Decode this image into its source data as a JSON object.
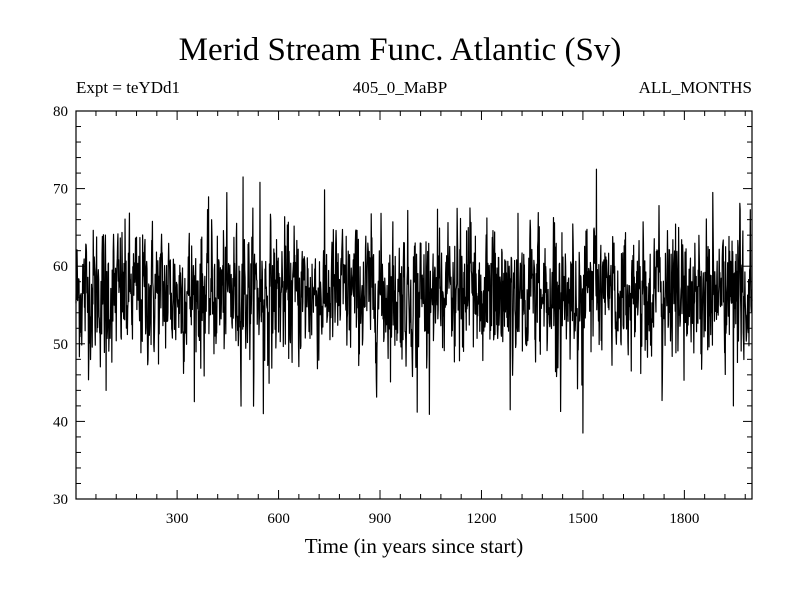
{
  "chart_data": {
    "type": "line",
    "title": "Merid Stream Func. Atlantic (Sv)",
    "subtitle_left": "Expt = teYDd1",
    "subtitle_center": "405_0_MaBP",
    "subtitle_right": "ALL_MONTHS",
    "xlabel": "Time (in years since start)",
    "ylabel": "",
    "xlim": [
      1,
      2000
    ],
    "ylim": [
      30,
      80
    ],
    "xticks": [
      300,
      600,
      900,
      1200,
      1500,
      1800
    ],
    "yticks": [
      30,
      40,
      50,
      60,
      70,
      80
    ],
    "series": [
      {
        "name": "Merid Stream Func. Atlantic",
        "n_points": 2000,
        "mean": 56.5,
        "stdev": 4.3,
        "min": 38.5,
        "max": 72.5,
        "extremes": [
          {
            "x": 495,
            "y": 71.5
          },
          {
            "x": 545,
            "y": 70.8
          },
          {
            "x": 555,
            "y": 41.0
          },
          {
            "x": 1010,
            "y": 41.2
          },
          {
            "x": 1285,
            "y": 41.5
          },
          {
            "x": 1500,
            "y": 38.5
          },
          {
            "x": 1540,
            "y": 72.5
          },
          {
            "x": 90,
            "y": 44.0
          },
          {
            "x": 1945,
            "y": 42.0
          }
        ]
      }
    ]
  }
}
